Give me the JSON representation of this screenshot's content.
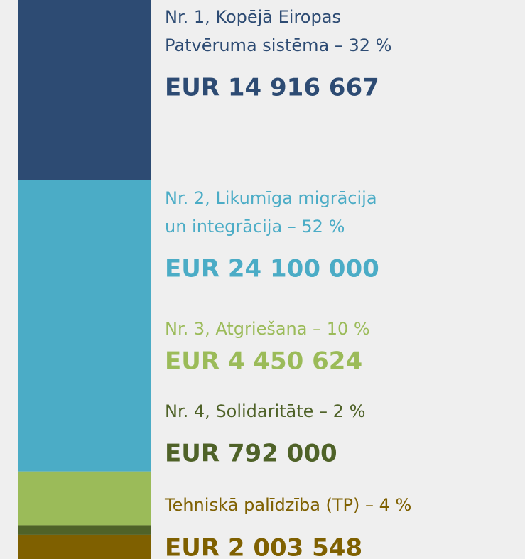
{
  "chart_data": {
    "type": "stacked-bar",
    "categories": [
      [
        "Nr. 1, Kopējā Eiropas",
        "Patvēruma sistēma – 32 %"
      ],
      [
        "Nr. 2, Likumīga migrācija",
        "un integrācija – 52 %"
      ],
      [
        "Nr. 3, Atgriešana – 10 %"
      ],
      [
        "Nr. 4, Solidaritāte – 2 %"
      ],
      [
        "Tehniskā palīdzība (TP) – 4 %"
      ]
    ],
    "values": [
      14916667,
      24100000,
      4450624,
      792000,
      2003548
    ],
    "value_labels": [
      "EUR 14 916 667",
      "EUR 24 100 000",
      "EUR 4 450 624",
      "EUR 792 000",
      "EUR 2 003 548"
    ],
    "colors": [
      "#2d4b73",
      "#4bacc6",
      "#9bbb59",
      "#4f6228",
      "#7f6000"
    ]
  }
}
